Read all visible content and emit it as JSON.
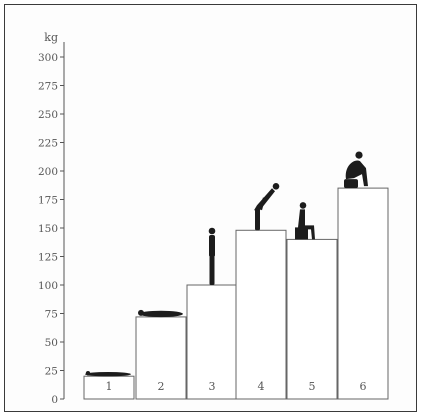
{
  "chart_data": {
    "type": "bar",
    "ylabel": "kg",
    "ylim": [
      0,
      300
    ],
    "yticks": [
      0,
      25,
      50,
      75,
      100,
      125,
      150,
      175,
      200,
      225,
      250,
      275,
      300
    ],
    "categories": [
      "1",
      "2",
      "3",
      "4",
      "5",
      "6"
    ],
    "values": [
      20,
      72,
      100,
      148,
      140,
      185
    ],
    "grid": false,
    "colors": {
      "bar_fill": "#ffffff",
      "bar_stroke": "#666666",
      "silhouette": "#1c1c1c"
    },
    "pictograms": [
      "lying-figure-icon",
      "lying-figure-icon",
      "standing-figure-icon",
      "bending-figure-icon",
      "seated-figure-icon",
      "crouching-figure-icon"
    ]
  }
}
